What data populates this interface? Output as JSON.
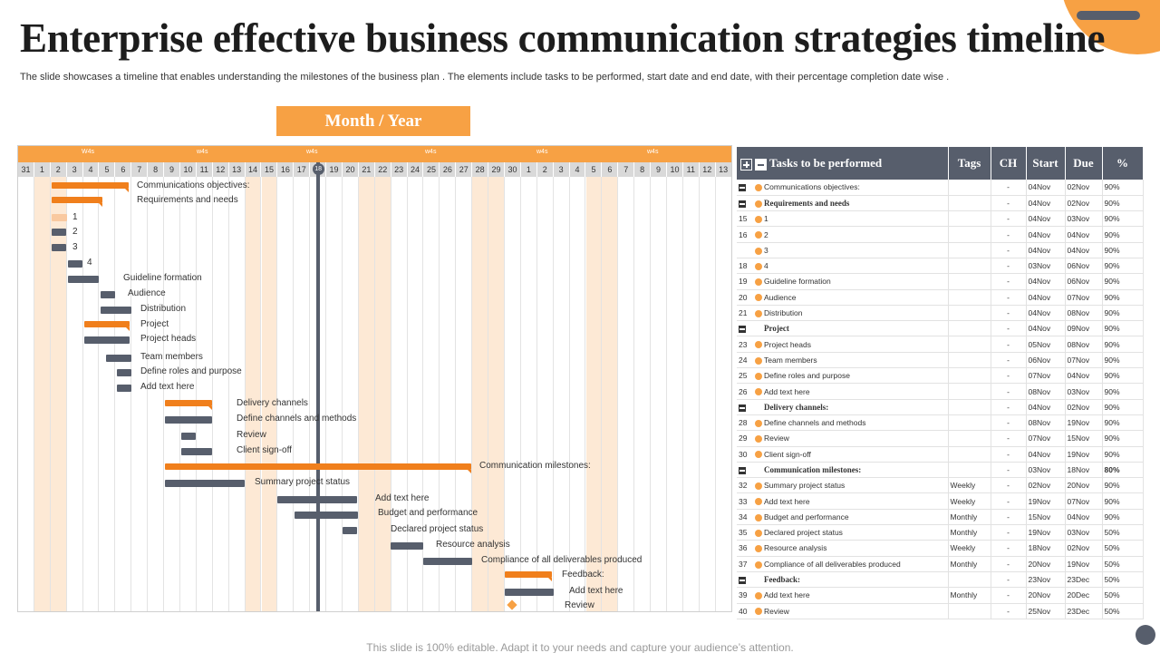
{
  "title": "Enterprise effective business communication strategies timeline",
  "subtitle": "The slide showcases a timeline that enables understanding the milestones of the business plan . The elements include tasks to be performed, start date and end date, with their percentage completion date wise .",
  "footer": "This slide is 100% editable. Adapt it to your needs and capture your audience’s attention.",
  "month_year_label": "Month / Year",
  "colors": {
    "accent": "#f7a144",
    "bar_orange": "#f07f1c",
    "bar_gray": "#575e6c",
    "shade": "#fde9d5"
  },
  "gantt": {
    "week_labels": [
      "W4s",
      "w4s",
      "w4s",
      "w4s",
      "w4s",
      "w4s"
    ],
    "days": [
      "31",
      "1",
      "2",
      "3",
      "4",
      "5",
      "6",
      "7",
      "8",
      "9",
      "10",
      "11",
      "12",
      "13",
      "14",
      "15",
      "16",
      "17",
      "18",
      "19",
      "20",
      "21",
      "22",
      "23",
      "24",
      "25",
      "26",
      "27",
      "28",
      "29",
      "30",
      "1",
      "2",
      "3",
      "4",
      "5",
      "6",
      "7",
      "8",
      "9",
      "10",
      "11",
      "12",
      "13"
    ],
    "today_day": "18",
    "rows": [
      {
        "label": "Communications objectives:"
      },
      {
        "label": "Requirements and needs"
      },
      {
        "label": "1"
      },
      {
        "label": "2"
      },
      {
        "label": "3"
      },
      {
        "label": "4"
      },
      {
        "label": "Guideline formation"
      },
      {
        "label": "Audience"
      },
      {
        "label": "Distribution"
      },
      {
        "label": "Project"
      },
      {
        "label": "Project heads"
      },
      {
        "label": "Team members"
      },
      {
        "label": "Define roles and purpose"
      },
      {
        "label": "Add text here"
      },
      {
        "label": "Delivery channels"
      },
      {
        "label": "Define channels and methods"
      },
      {
        "label": "Review"
      },
      {
        "label": "Client sign-off"
      },
      {
        "label": "Communication milestones:"
      },
      {
        "label": "Summary project status"
      },
      {
        "label": "Add text here"
      },
      {
        "label": "Budget and performance"
      },
      {
        "label": "Declared project status"
      },
      {
        "label": "Resource analysis"
      },
      {
        "label": "Compliance of all deliverables produced"
      },
      {
        "label": "Feedback:"
      },
      {
        "label": "Add text here"
      },
      {
        "label": "Review"
      }
    ]
  },
  "table": {
    "headers": {
      "tasks": "Tasks to be performed",
      "tags": "Tags",
      "ch": "CH",
      "start": "Start",
      "due": "Due",
      "pct": "%"
    },
    "rows": [
      {
        "id": "",
        "group": true,
        "dot": true,
        "name": "Communications objectives:",
        "tags": "",
        "ch": "-",
        "start": "04Nov",
        "due": "02Nov",
        "pct": "90%",
        "bold": false
      },
      {
        "id": "",
        "group": true,
        "dot": true,
        "name": "Requirements and needs",
        "tags": "",
        "ch": "-",
        "start": "04Nov",
        "due": "02Nov",
        "pct": "90%",
        "bold": true
      },
      {
        "id": "15",
        "group": false,
        "dot": true,
        "name": "1",
        "tags": "",
        "ch": "-",
        "start": "04Nov",
        "due": "03Nov",
        "pct": "90%",
        "bold": false
      },
      {
        "id": "16",
        "group": false,
        "dot": true,
        "name": "2",
        "tags": "",
        "ch": "-",
        "start": "04Nov",
        "due": "04Nov",
        "pct": "90%",
        "bold": false
      },
      {
        "id": "",
        "group": false,
        "dot": true,
        "name": "3",
        "tags": "",
        "ch": "-",
        "start": "04Nov",
        "due": "04Nov",
        "pct": "90%",
        "bold": false
      },
      {
        "id": "18",
        "group": false,
        "dot": true,
        "name": "4",
        "tags": "",
        "ch": "-",
        "start": "03Nov",
        "due": "06Nov",
        "pct": "90%",
        "bold": false
      },
      {
        "id": "19",
        "group": false,
        "dot": true,
        "name": "Guideline formation",
        "tags": "",
        "ch": "-",
        "start": "04Nov",
        "due": "06Nov",
        "pct": "90%",
        "bold": false
      },
      {
        "id": "20",
        "group": false,
        "dot": true,
        "name": "Audience",
        "tags": "",
        "ch": "-",
        "start": "04Nov",
        "due": "07Nov",
        "pct": "90%",
        "bold": false
      },
      {
        "id": "21",
        "group": false,
        "dot": true,
        "name": "Distribution",
        "tags": "",
        "ch": "-",
        "start": "04Nov",
        "due": "08Nov",
        "pct": "90%",
        "bold": false
      },
      {
        "id": "",
        "group": true,
        "dot": false,
        "name": "Project",
        "tags": "",
        "ch": "-",
        "start": "04Nov",
        "due": "09Nov",
        "pct": "90%",
        "bold": true
      },
      {
        "id": "23",
        "group": false,
        "dot": true,
        "name": "Project heads",
        "tags": "",
        "ch": "-",
        "start": "05Nov",
        "due": "08Nov",
        "pct": "90%",
        "bold": false
      },
      {
        "id": "24",
        "group": false,
        "dot": true,
        "name": "Team members",
        "tags": "",
        "ch": "-",
        "start": "06Nov",
        "due": "07Nov",
        "pct": "90%",
        "bold": false
      },
      {
        "id": "25",
        "group": false,
        "dot": true,
        "name": "Define roles and purpose",
        "tags": "",
        "ch": "-",
        "start": "07Nov",
        "due": "04Nov",
        "pct": "90%",
        "bold": false
      },
      {
        "id": "26",
        "group": false,
        "dot": true,
        "name": "Add text here",
        "tags": "",
        "ch": "-",
        "start": "08Nov",
        "due": "03Nov",
        "pct": "90%",
        "bold": false
      },
      {
        "id": "",
        "group": true,
        "dot": false,
        "name": "Delivery channels:",
        "tags": "",
        "ch": "-",
        "start": "04Nov",
        "due": "02Nov",
        "pct": "90%",
        "bold": true
      },
      {
        "id": "28",
        "group": false,
        "dot": true,
        "name": "Define channels and methods",
        "tags": "",
        "ch": "-",
        "start": "08Nov",
        "due": "19Nov",
        "pct": "90%",
        "bold": false
      },
      {
        "id": "29",
        "group": false,
        "dot": true,
        "name": "Review",
        "tags": "",
        "ch": "-",
        "start": "07Nov",
        "due": "15Nov",
        "pct": "90%",
        "bold": false
      },
      {
        "id": "30",
        "group": false,
        "dot": true,
        "name": "Client sign-off",
        "tags": "",
        "ch": "-",
        "start": "04Nov",
        "due": "19Nov",
        "pct": "90%",
        "bold": false
      },
      {
        "id": "",
        "group": true,
        "dot": false,
        "name": "Communication milestones:",
        "tags": "",
        "ch": "-",
        "start": "03Nov",
        "due": "18Nov",
        "pct": "80%",
        "bold": true
      },
      {
        "id": "32",
        "group": false,
        "dot": true,
        "name": "Summary project status",
        "tags": "Weekly",
        "ch": "-",
        "start": "02Nov",
        "due": "20Nov",
        "pct": "90%",
        "bold": false
      },
      {
        "id": "33",
        "group": false,
        "dot": true,
        "name": "Add text here",
        "tags": "Weekly",
        "ch": "-",
        "start": "19Nov",
        "due": "07Nov",
        "pct": "90%",
        "bold": false
      },
      {
        "id": "34",
        "group": false,
        "dot": true,
        "name": "Budget and performance",
        "tags": "Monthly",
        "ch": "-",
        "start": "15Nov",
        "due": "04Nov",
        "pct": "90%",
        "bold": false
      },
      {
        "id": "35",
        "group": false,
        "dot": true,
        "name": "Declared project status",
        "tags": "Monthly",
        "ch": "-",
        "start": "19Nov",
        "due": "03Nov",
        "pct": "50%",
        "bold": false
      },
      {
        "id": "36",
        "group": false,
        "dot": true,
        "name": "Resource analysis",
        "tags": "Weekly",
        "ch": "-",
        "start": "18Nov",
        "due": "02Nov",
        "pct": "50%",
        "bold": false
      },
      {
        "id": "37",
        "group": false,
        "dot": true,
        "name": "Compliance of all deliverables produced",
        "tags": "Monthly",
        "ch": "-",
        "start": "20Nov",
        "due": "19Nov",
        "pct": "50%",
        "bold": false
      },
      {
        "id": "",
        "group": true,
        "dot": false,
        "name": "Feedback:",
        "tags": "",
        "ch": "-",
        "start": "23Nov",
        "due": "23Dec",
        "pct": "50%",
        "bold": true
      },
      {
        "id": "39",
        "group": false,
        "dot": true,
        "name": "Add text here",
        "tags": "Monthly",
        "ch": "-",
        "start": "20Nov",
        "due": "20Dec",
        "pct": "50%",
        "bold": false
      },
      {
        "id": "40",
        "group": false,
        "dot": true,
        "name": "Review",
        "tags": "",
        "ch": "-",
        "start": "25Nov",
        "due": "23Dec",
        "pct": "50%",
        "bold": false
      }
    ]
  }
}
